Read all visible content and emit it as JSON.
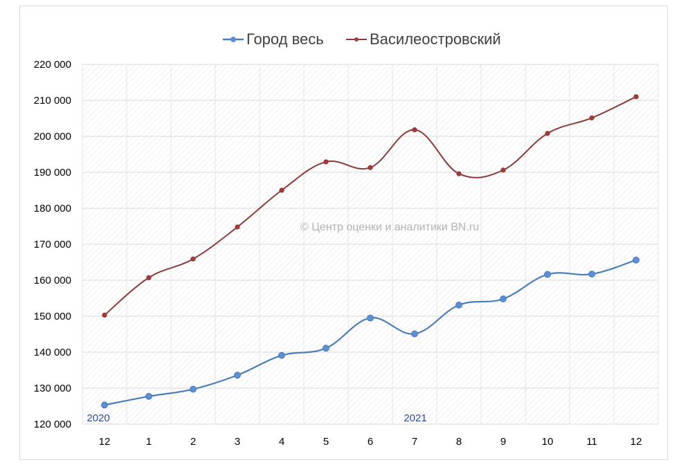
{
  "chart_data": {
    "type": "line",
    "categories": [
      "12",
      "1",
      "2",
      "3",
      "4",
      "5",
      "6",
      "7",
      "8",
      "9",
      "10",
      "11",
      "12"
    ],
    "series": [
      {
        "name": "Город весь",
        "color": "#4a7ebb",
        "marker_color": "#5b8fd6",
        "values": [
          125300,
          127700,
          129700,
          133600,
          139100,
          141100,
          149500,
          145100,
          153100,
          154800,
          161600,
          161700,
          165600
        ]
      },
      {
        "name": "Василеостровский",
        "color": "#8b3a3a",
        "marker_color": "#a33b3b",
        "values": [
          150300,
          160700,
          165900,
          174800,
          185000,
          192900,
          191300,
          201800,
          189600,
          190600,
          200800,
          205100,
          211000
        ]
      }
    ],
    "ylim": [
      120000,
      220000
    ],
    "yticks": [
      "120 000",
      "130 000",
      "140 000",
      "150 000",
      "160 000",
      "170 000",
      "180 000",
      "190 000",
      "200 000",
      "210 000",
      "220 000"
    ],
    "legend_position": "top",
    "grid": true,
    "annotations": {
      "year_2020": "2020",
      "year_2021": "2021",
      "watermark": "© Центр оценки и аналитики BN.ru"
    }
  }
}
